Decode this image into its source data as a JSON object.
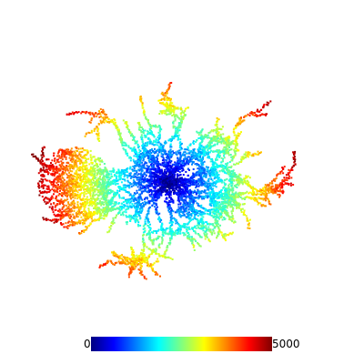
{
  "colorbar": {
    "min_label": "0",
    "max_label": "5000",
    "min_value": 0,
    "max_value": 5000,
    "colormap": "jet",
    "stops": [
      "#00007f",
      "#0000ff",
      "#0080ff",
      "#00ffff",
      "#80ff80",
      "#ffff00",
      "#ff8000",
      "#ff0000",
      "#7f0000"
    ]
  }
}
